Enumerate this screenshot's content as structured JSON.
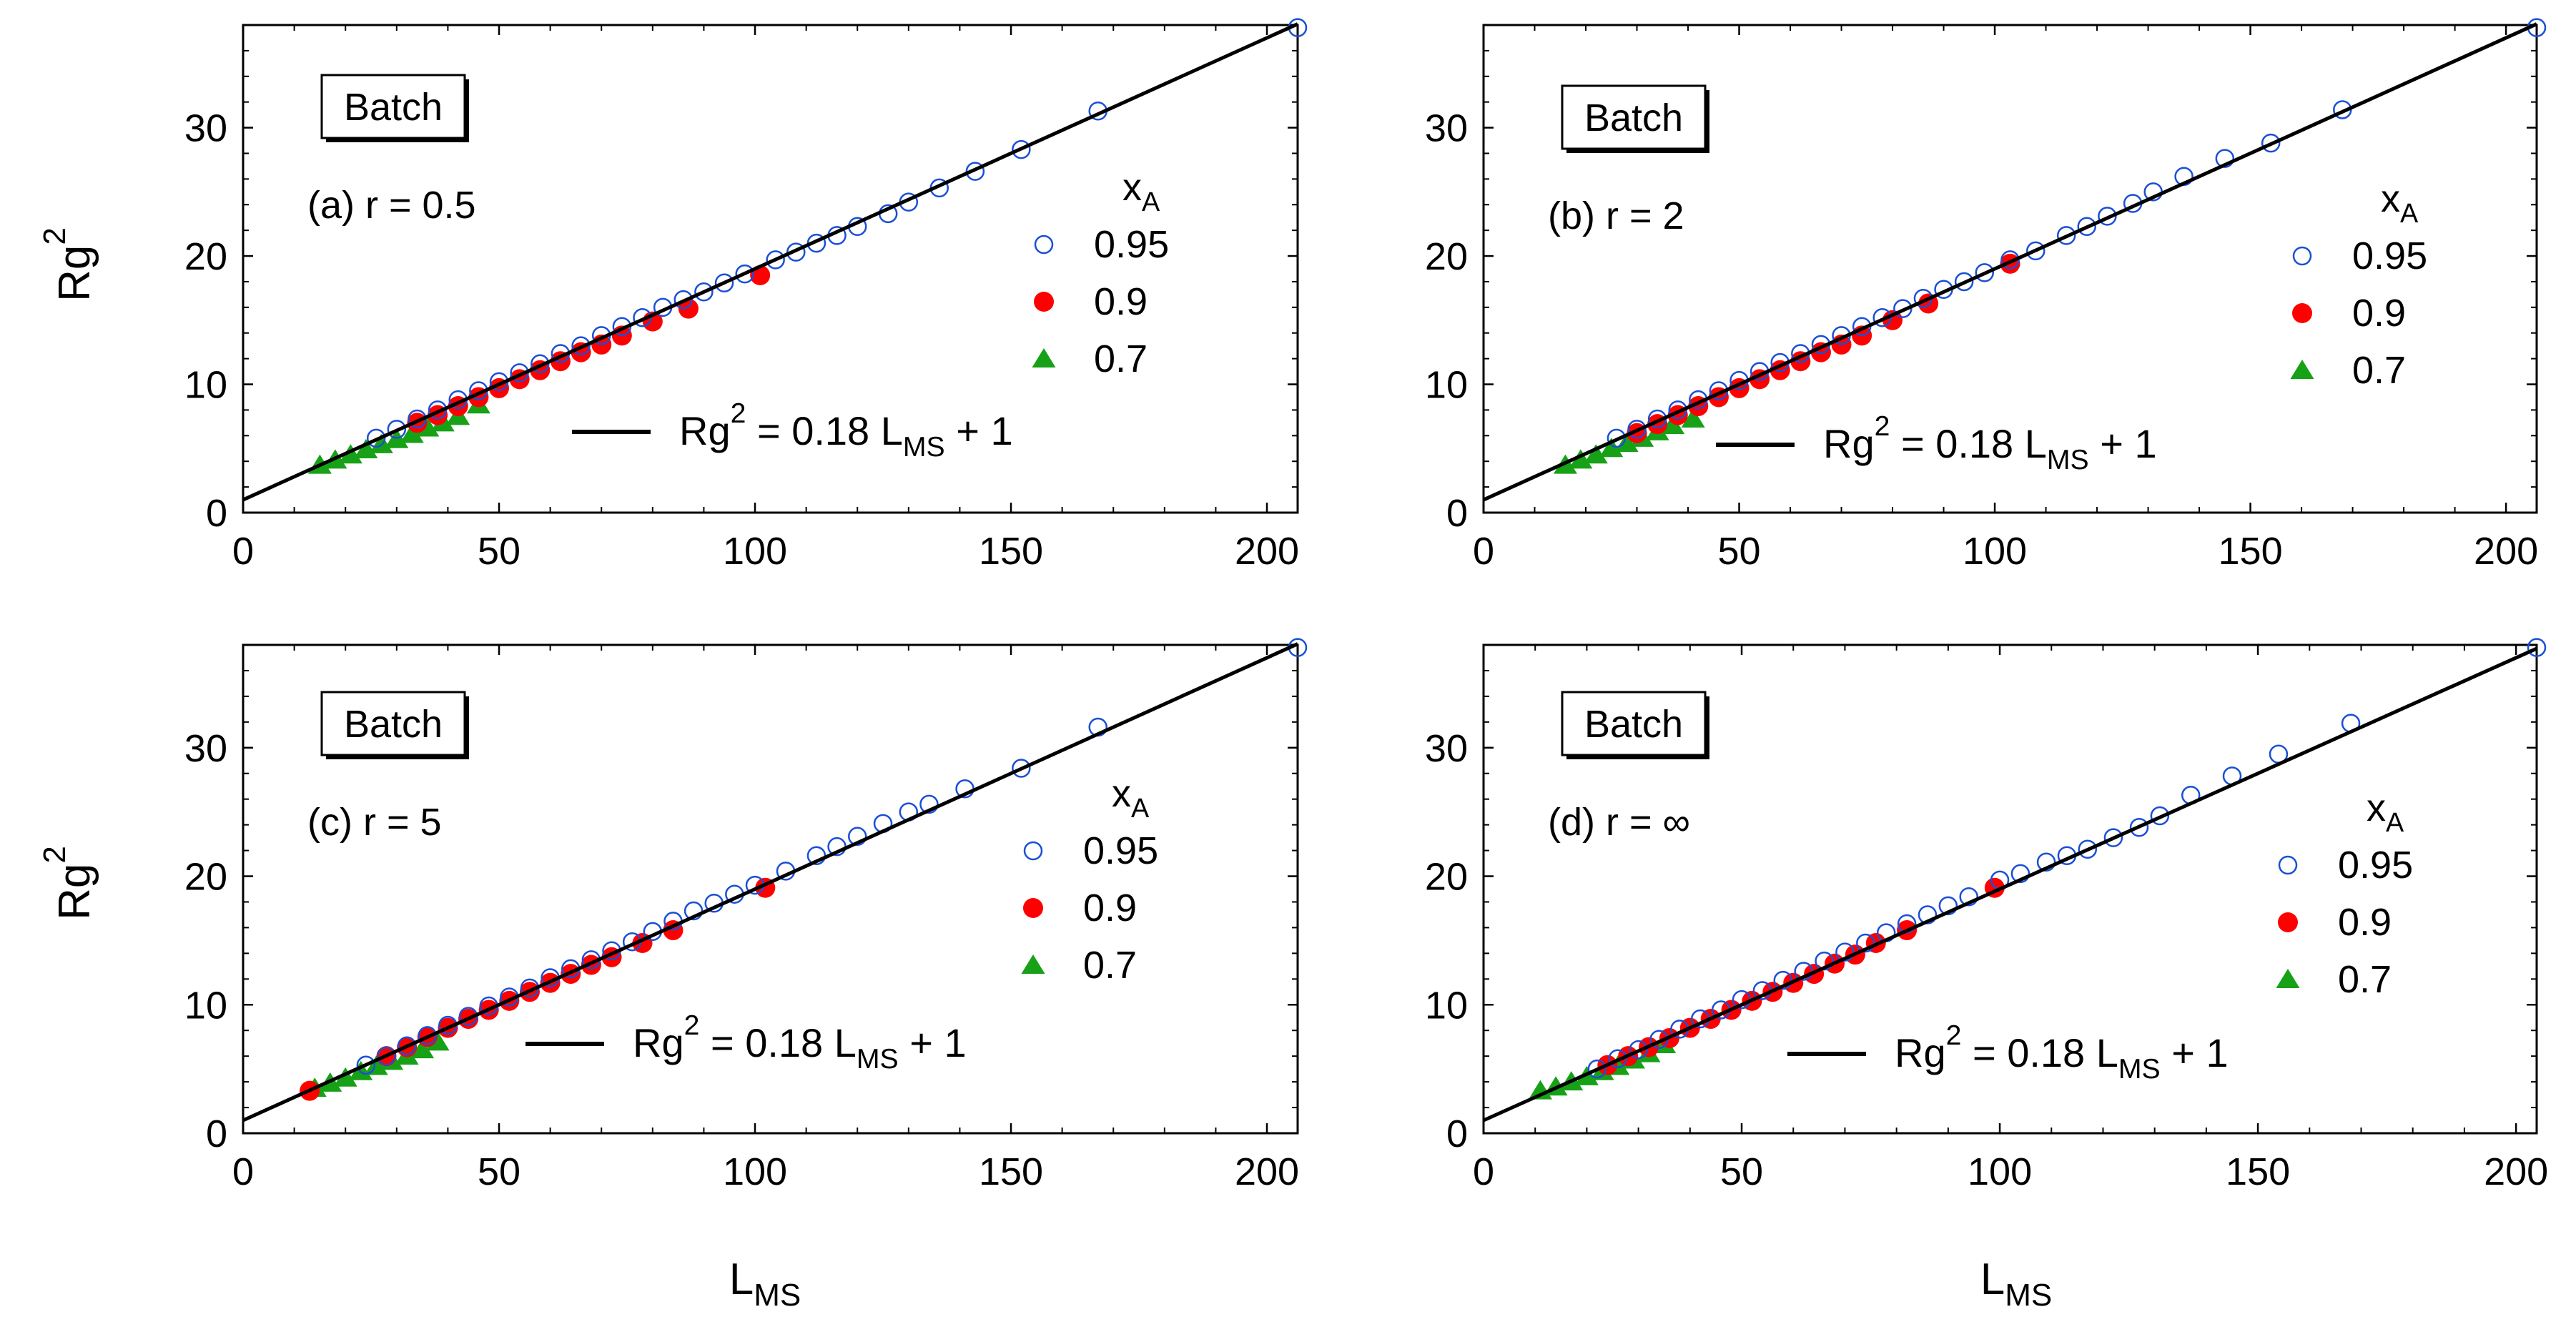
{
  "figure": {
    "ylabel": "Rg",
    "ylabel_sup": "2",
    "xlabel": "L",
    "xlabel_sub": "MS",
    "colors": {
      "x095": "#1a4fd6",
      "x09": "#ff0000",
      "x07": "#16a116",
      "line": "#000000"
    }
  },
  "chart_data": [
    {
      "type": "scatter",
      "panel": "a",
      "box_label": "Batch",
      "panel_label": "(a) r = 0.5",
      "legend_title": "x",
      "legend_title_sub": "A",
      "legend": [
        "0.95",
        "0.9",
        "0.7"
      ],
      "fit_label": {
        "prefix": "Rg",
        "sup": "2",
        "mid": " = 0.18 L",
        "sub": "MS",
        "suffix": " + 1"
      },
      "fit": {
        "slope": 0.18,
        "intercept": 1
      },
      "xlim": [
        0,
        206
      ],
      "ylim": [
        0,
        38
      ],
      "xticks": [
        "0",
        "50",
        "100",
        "150",
        "200"
      ],
      "yticks": [
        "0",
        "10",
        "20",
        "30"
      ],
      "series": [
        {
          "name": "0.95",
          "marker": "open-circle",
          "points": [
            [
              26,
              5.8
            ],
            [
              30,
              6.5
            ],
            [
              34,
              7.3
            ],
            [
              38,
              8.0
            ],
            [
              42,
              8.8
            ],
            [
              46,
              9.5
            ],
            [
              50,
              10.2
            ],
            [
              54,
              10.9
            ],
            [
              58,
              11.6
            ],
            [
              62,
              12.4
            ],
            [
              66,
              13.0
            ],
            [
              70,
              13.8
            ],
            [
              74,
              14.5
            ],
            [
              78,
              15.2
            ],
            [
              82,
              16.0
            ],
            [
              86,
              16.6
            ],
            [
              90,
              17.2
            ],
            [
              94,
              17.9
            ],
            [
              98,
              18.6
            ],
            [
              104,
              19.7
            ],
            [
              108,
              20.3
            ],
            [
              112,
              21.0
            ],
            [
              116,
              21.6
            ],
            [
              120,
              22.3
            ],
            [
              126,
              23.3
            ],
            [
              130,
              24.2
            ],
            [
              136,
              25.3
            ],
            [
              143,
              26.6
            ],
            [
              152,
              28.3
            ],
            [
              167,
              31.3
            ],
            [
              206,
              37.8
            ]
          ]
        },
        {
          "name": "0.9",
          "marker": "filled-circle",
          "points": [
            [
              34,
              7.0
            ],
            [
              38,
              7.6
            ],
            [
              42,
              8.3
            ],
            [
              46,
              9.0
            ],
            [
              50,
              9.7
            ],
            [
              54,
              10.4
            ],
            [
              58,
              11.1
            ],
            [
              62,
              11.8
            ],
            [
              66,
              12.5
            ],
            [
              70,
              13.1
            ],
            [
              74,
              13.8
            ],
            [
              80,
              14.9
            ],
            [
              87,
              15.9
            ],
            [
              101,
              18.5
            ]
          ]
        },
        {
          "name": "0.7",
          "marker": "filled-triangle",
          "points": [
            [
              15,
              3.7
            ],
            [
              18,
              4.1
            ],
            [
              21,
              4.5
            ],
            [
              24,
              4.9
            ],
            [
              27,
              5.3
            ],
            [
              30,
              5.7
            ],
            [
              33,
              6.1
            ],
            [
              36,
              6.6
            ],
            [
              39,
              7.0
            ],
            [
              42,
              7.5
            ],
            [
              46,
              8.4
            ]
          ]
        }
      ]
    },
    {
      "type": "scatter",
      "panel": "b",
      "box_label": "Batch",
      "panel_label": "(b) r = 2",
      "legend_title": "x",
      "legend_title_sub": "A",
      "legend": [
        "0.95",
        "0.9",
        "0.7"
      ],
      "fit_label": {
        "prefix": "Rg",
        "sup": "2",
        "mid": " = 0.18 L",
        "sub": "MS",
        "suffix": " + 1"
      },
      "fit": {
        "slope": 0.18,
        "intercept": 1
      },
      "xlim": [
        0,
        206
      ],
      "ylim": [
        0,
        38
      ],
      "xticks": [
        "0",
        "50",
        "100",
        "150",
        "200"
      ],
      "yticks": [
        "0",
        "10",
        "20",
        "30"
      ],
      "series": [
        {
          "name": "0.95",
          "marker": "open-circle",
          "points": [
            [
              26,
              5.8
            ],
            [
              30,
              6.5
            ],
            [
              34,
              7.3
            ],
            [
              38,
              8.0
            ],
            [
              42,
              8.8
            ],
            [
              46,
              9.5
            ],
            [
              50,
              10.3
            ],
            [
              54,
              11.0
            ],
            [
              58,
              11.7
            ],
            [
              62,
              12.4
            ],
            [
              66,
              13.1
            ],
            [
              70,
              13.8
            ],
            [
              74,
              14.5
            ],
            [
              78,
              15.2
            ],
            [
              82,
              15.9
            ],
            [
              86,
              16.7
            ],
            [
              90,
              17.4
            ],
            [
              94,
              18.0
            ],
            [
              98,
              18.7
            ],
            [
              103,
              19.7
            ],
            [
              108,
              20.4
            ],
            [
              114,
              21.6
            ],
            [
              118,
              22.3
            ],
            [
              122,
              23.1
            ],
            [
              127,
              24.1
            ],
            [
              131,
              25.0
            ],
            [
              137,
              26.2
            ],
            [
              145,
              27.6
            ],
            [
              154,
              28.8
            ],
            [
              168,
              31.4
            ],
            [
              206,
              37.8
            ]
          ]
        },
        {
          "name": "0.9",
          "marker": "filled-circle",
          "points": [
            [
              30,
              6.2
            ],
            [
              34,
              6.9
            ],
            [
              38,
              7.6
            ],
            [
              42,
              8.3
            ],
            [
              46,
              9.0
            ],
            [
              50,
              9.7
            ],
            [
              54,
              10.4
            ],
            [
              58,
              11.1
            ],
            [
              62,
              11.8
            ],
            [
              66,
              12.5
            ],
            [
              70,
              13.1
            ],
            [
              74,
              13.8
            ],
            [
              80,
              15.0
            ],
            [
              87,
              16.3
            ],
            [
              103,
              19.4
            ]
          ]
        },
        {
          "name": "0.7",
          "marker": "filled-triangle",
          "points": [
            [
              16,
              3.7
            ],
            [
              19,
              4.1
            ],
            [
              22,
              4.5
            ],
            [
              25,
              5.0
            ],
            [
              28,
              5.4
            ],
            [
              31,
              5.8
            ],
            [
              34,
              6.3
            ],
            [
              37,
              6.8
            ],
            [
              41,
              7.3
            ]
          ]
        }
      ]
    },
    {
      "type": "scatter",
      "panel": "c",
      "box_label": "Batch",
      "panel_label": "(c) r = 5",
      "legend_title": "x",
      "legend_title_sub": "A",
      "legend": [
        "0.95",
        "0.9",
        "0.7"
      ],
      "fit_label": {
        "prefix": "Rg",
        "sup": "2",
        "mid": " = 0.18 L",
        "sub": "MS",
        "suffix": " + 1"
      },
      "fit": {
        "slope": 0.18,
        "intercept": 1
      },
      "xlim": [
        0,
        206
      ],
      "ylim": [
        0,
        38
      ],
      "xticks": [
        "0",
        "50",
        "100",
        "150",
        "200"
      ],
      "yticks": [
        "0",
        "10",
        "20",
        "30"
      ],
      "series": [
        {
          "name": "0.95",
          "marker": "open-circle",
          "points": [
            [
              24,
              5.3
            ],
            [
              28,
              6.0
            ],
            [
              32,
              6.8
            ],
            [
              36,
              7.6
            ],
            [
              40,
              8.4
            ],
            [
              44,
              9.1
            ],
            [
              48,
              9.9
            ],
            [
              52,
              10.6
            ],
            [
              56,
              11.3
            ],
            [
              60,
              12.1
            ],
            [
              64,
              12.8
            ],
            [
              68,
              13.5
            ],
            [
              72,
              14.2
            ],
            [
              76,
              14.9
            ],
            [
              80,
              15.7
            ],
            [
              84,
              16.5
            ],
            [
              88,
              17.3
            ],
            [
              92,
              17.9
            ],
            [
              96,
              18.6
            ],
            [
              100,
              19.3
            ],
            [
              106,
              20.4
            ],
            [
              112,
              21.6
            ],
            [
              116,
              22.3
            ],
            [
              120,
              23.1
            ],
            [
              125,
              24.1
            ],
            [
              130,
              25.0
            ],
            [
              134,
              25.6
            ],
            [
              141,
              26.8
            ],
            [
              152,
              28.4
            ],
            [
              167,
              31.6
            ],
            [
              206,
              37.8
            ]
          ]
        },
        {
          "name": "0.9",
          "marker": "filled-circle",
          "points": [
            [
              13,
              3.3
            ],
            [
              28,
              6.0
            ],
            [
              32,
              6.7
            ],
            [
              36,
              7.5
            ],
            [
              40,
              8.2
            ],
            [
              44,
              8.9
            ],
            [
              48,
              9.6
            ],
            [
              52,
              10.3
            ],
            [
              56,
              11.0
            ],
            [
              60,
              11.7
            ],
            [
              64,
              12.4
            ],
            [
              68,
              13.1
            ],
            [
              72,
              13.7
            ],
            [
              78,
              14.8
            ],
            [
              84,
              15.8
            ],
            [
              102,
              19.1
            ]
          ]
        },
        {
          "name": "0.7",
          "marker": "filled-triangle",
          "points": [
            [
              14,
              3.5
            ],
            [
              17,
              3.9
            ],
            [
              20,
              4.3
            ],
            [
              23,
              4.8
            ],
            [
              26,
              5.2
            ],
            [
              29,
              5.6
            ],
            [
              32,
              6.0
            ],
            [
              35,
              6.5
            ],
            [
              38,
              7.1
            ]
          ]
        }
      ]
    },
    {
      "type": "scatter",
      "panel": "d",
      "box_label": "Batch",
      "panel_label": "(d) r = ∞",
      "legend_title": "x",
      "legend_title_sub": "A",
      "legend": [
        "0.95",
        "0.9",
        "0.7"
      ],
      "fit_label": {
        "prefix": "Rg",
        "sup": "2",
        "mid": " = 0.18 L",
        "sub": "MS",
        "suffix": " + 1"
      },
      "fit": {
        "slope": 0.18,
        "intercept": 1
      },
      "xlim": [
        0,
        204
      ],
      "ylim": [
        0,
        38
      ],
      "xticks": [
        "0",
        "50",
        "100",
        "150",
        "200"
      ],
      "yticks": [
        "0",
        "10",
        "20",
        "30"
      ],
      "series": [
        {
          "name": "0.95",
          "marker": "open-circle",
          "points": [
            [
              22,
              5.0
            ],
            [
              26,
              5.8
            ],
            [
              30,
              6.5
            ],
            [
              34,
              7.3
            ],
            [
              38,
              8.1
            ],
            [
              42,
              8.9
            ],
            [
              46,
              9.6
            ],
            [
              50,
              10.4
            ],
            [
              54,
              11.1
            ],
            [
              58,
              11.9
            ],
            [
              62,
              12.6
            ],
            [
              66,
              13.4
            ],
            [
              70,
              14.1
            ],
            [
              74,
              14.8
            ],
            [
              78,
              15.6
            ],
            [
              82,
              16.3
            ],
            [
              86,
              17.0
            ],
            [
              90,
              17.7
            ],
            [
              94,
              18.4
            ],
            [
              100,
              19.7
            ],
            [
              104,
              20.2
            ],
            [
              109,
              21.1
            ],
            [
              113,
              21.6
            ],
            [
              117,
              22.1
            ],
            [
              122,
              23.0
            ],
            [
              127,
              23.8
            ],
            [
              131,
              24.7
            ],
            [
              137,
              26.3
            ],
            [
              145,
              27.8
            ],
            [
              154,
              29.5
            ],
            [
              168,
              31.9
            ],
            [
              204,
              37.8
            ]
          ]
        },
        {
          "name": "0.9",
          "marker": "filled-circle",
          "points": [
            [
              24,
              5.3
            ],
            [
              28,
              6.0
            ],
            [
              32,
              6.7
            ],
            [
              36,
              7.4
            ],
            [
              40,
              8.2
            ],
            [
              44,
              8.9
            ],
            [
              48,
              9.6
            ],
            [
              52,
              10.3
            ],
            [
              56,
              11.0
            ],
            [
              60,
              11.7
            ],
            [
              64,
              12.4
            ],
            [
              68,
              13.2
            ],
            [
              72,
              13.9
            ],
            [
              76,
              14.8
            ],
            [
              82,
              15.8
            ],
            [
              99,
              19.1
            ]
          ]
        },
        {
          "name": "0.7",
          "marker": "filled-triangle",
          "points": [
            [
              11,
              3.3
            ],
            [
              14,
              3.6
            ],
            [
              17,
              4.0
            ],
            [
              20,
              4.4
            ],
            [
              23,
              4.8
            ],
            [
              26,
              5.2
            ],
            [
              29,
              5.7
            ],
            [
              32,
              6.2
            ],
            [
              35,
              6.9
            ]
          ]
        }
      ]
    }
  ]
}
